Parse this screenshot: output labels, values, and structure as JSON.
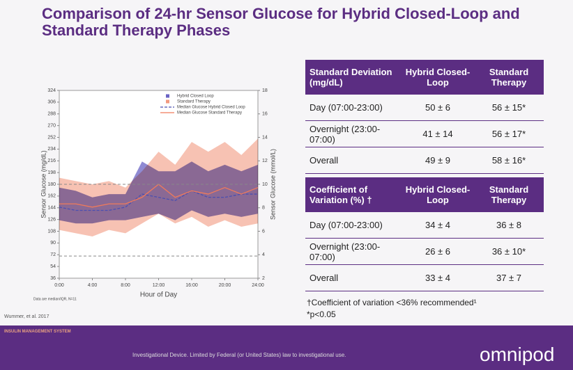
{
  "title": "Comparison of 24-hr Sensor Glucose for Hybrid Closed-Loop and Standard Therapy Phases",
  "chart_data": {
    "type": "band",
    "xlabel": "Hour of Day",
    "ylabel": "Sensor Glucose (mg/dL)",
    "y2label": "Sensor Glucose (mmol/L)",
    "note": "Data are median/IQR, N=11",
    "x": [
      0,
      2,
      4,
      6,
      8,
      10,
      12,
      14,
      16,
      18,
      20,
      22,
      24
    ],
    "xlim": [
      0,
      24
    ],
    "xticks": [
      {
        "value": 0,
        "label": "0:00"
      },
      {
        "value": 4,
        "label": "4:00"
      },
      {
        "value": 8,
        "label": "8:00"
      },
      {
        "value": 12,
        "label": "12:00"
      },
      {
        "value": 16,
        "label": "16:00"
      },
      {
        "value": 20,
        "label": "20:00"
      },
      {
        "value": 24,
        "label": "24:00"
      }
    ],
    "ylim": [
      36,
      324
    ],
    "yticks": [
      36,
      54,
      72,
      90,
      108,
      126,
      144,
      162,
      180,
      198,
      216,
      234,
      252,
      270,
      288,
      306,
      324
    ],
    "y2lim": [
      2,
      18
    ],
    "y2ticks": [
      2,
      4,
      6,
      8,
      10,
      12,
      14,
      16,
      18
    ],
    "hlines": [
      180,
      70
    ],
    "legend": "upper right",
    "series": [
      {
        "name": "Hybrid Closed Loop",
        "color": "#6a63c4",
        "upper": [
          175,
          170,
          160,
          165,
          165,
          215,
          200,
          200,
          215,
          200,
          210,
          200,
          210
        ],
        "lower": [
          125,
          120,
          120,
          125,
          125,
          130,
          135,
          125,
          140,
          130,
          135,
          130,
          135
        ]
      },
      {
        "name": "Standard Therapy",
        "color": "#f29a80",
        "upper": [
          190,
          185,
          180,
          185,
          175,
          200,
          230,
          210,
          245,
          230,
          245,
          225,
          250
        ],
        "lower": [
          110,
          105,
          100,
          110,
          105,
          120,
          135,
          120,
          130,
          115,
          125,
          115,
          120
        ]
      },
      {
        "name": "Median Glucose Hybrid Closed Loop",
        "color": "#4a4fb0",
        "values": [
          145,
          140,
          140,
          140,
          145,
          165,
          160,
          155,
          170,
          160,
          160,
          165,
          165
        ]
      },
      {
        "name": "Median Glucose Standard Therapy",
        "color": "#f07a5a",
        "values": [
          150,
          150,
          145,
          150,
          150,
          160,
          180,
          160,
          170,
          165,
          175,
          165,
          175
        ]
      }
    ]
  },
  "tables": [
    {
      "header": [
        "Standard Deviation (mg/dL)",
        "Hybrid Closed-Loop",
        "Standard Therapy"
      ],
      "rows": [
        [
          "Day (07:00-23:00)",
          "50 ± 6",
          "56 ± 15*"
        ],
        [
          "Overnight (23:00-07:00)",
          "41 ± 14",
          "56 ± 17*"
        ],
        [
          "Overall",
          "49 ± 9",
          "58 ± 16*"
        ]
      ]
    },
    {
      "header": [
        "Coefficient of Variation (%) †",
        "Hybrid Closed-Loop",
        "Standard Therapy"
      ],
      "rows": [
        [
          "Day (07:00-23:00)",
          "34 ± 4",
          "36 ± 8"
        ],
        [
          "Overnight (23:00-07:00)",
          "26 ± 6",
          "36 ± 10*"
        ],
        [
          "Overall",
          "33 ± 4",
          "37 ± 7"
        ]
      ]
    }
  ],
  "footnotes": [
    "†Coefficient of variation <36% recommended¹",
    "*p<0.05"
  ],
  "citation": "Wummer, et al. 2017",
  "footer": {
    "brand_tag": "INSULIN MANAGEMENT SYSTEM",
    "disclaimer": "Investigational Device. Limited by Federal (or United States) law to investigational use.",
    "logo": "omnipod"
  }
}
